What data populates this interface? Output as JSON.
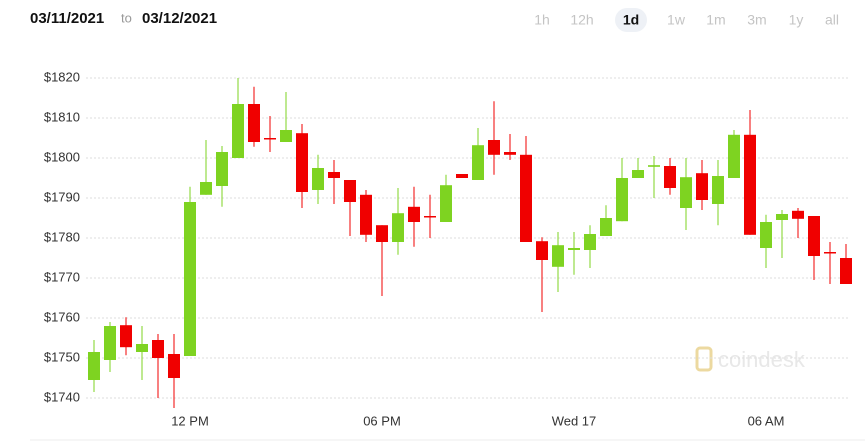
{
  "header": {
    "from": "03/11/2021",
    "sep": "to",
    "to": "03/12/2021"
  },
  "ranges": {
    "options": [
      "1h",
      "12h",
      "1d",
      "1w",
      "1m",
      "3m",
      "1y",
      "all"
    ],
    "selected": "1d"
  },
  "chart_data": {
    "type": "candlestick",
    "watermark": "coindesk",
    "categories": [
      null,
      null,
      null,
      null,
      null,
      null,
      "12 PM",
      null,
      null,
      null,
      null,
      null,
      null,
      null,
      null,
      null,
      null,
      null,
      "06 PM",
      null,
      null,
      null,
      null,
      null,
      null,
      null,
      null,
      null,
      null,
      null,
      "Wed 17",
      null,
      null,
      null,
      null,
      null,
      null,
      null,
      null,
      null,
      null,
      null,
      "06 AM",
      null,
      null,
      null,
      null,
      null
    ],
    "open": [
      1744.5,
      1749.5,
      1758.2,
      1751.5,
      1754.5,
      1751,
      1750.5,
      1790.8,
      1793,
      1800,
      1813.5,
      1805,
      1804,
      1806.2,
      1792,
      1796.5,
      1794.5,
      1790.8,
      1783.2,
      1779,
      1787.8,
      1785.5,
      1784,
      1796,
      1794.5,
      1804.5,
      1801.5,
      1800.8,
      1779.2,
      1772.8,
      1777,
      1777,
      1780.5,
      1784.2,
      1795,
      1797.8,
      1798,
      1787.5,
      1796.2,
      1788.5,
      1795,
      1805.8,
      1777.5,
      1784.5,
      1786.8,
      1785.5,
      1776.5,
      1775
    ],
    "high": [
      1754.5,
      1759,
      1760.2,
      1758,
      1756,
      1756,
      1792.8,
      1804.5,
      1803,
      1820,
      1817.8,
      1810.5,
      1816.5,
      1808.5,
      1800.8,
      1799.5,
      1794.5,
      1792,
      1783.2,
      1792.5,
      1792.8,
      1790.8,
      1795.8,
      1796,
      1807.5,
      1814.2,
      1806,
      1805.5,
      1780.2,
      1781.5,
      1781.5,
      1783.2,
      1788.2,
      1800,
      1800,
      1800.5,
      1800,
      1800,
      1799.5,
      1799.5,
      1807,
      1812,
      1785.8,
      1787,
      1787.5,
      1785.5,
      1779,
      1778.5
    ],
    "low": [
      1741.5,
      1746.5,
      1750.7,
      1744.5,
      1740,
      1737.5,
      1750.5,
      1790.8,
      1787.8,
      1800,
      1802.8,
      1801.5,
      1804,
      1787.5,
      1788.5,
      1788.5,
      1780.5,
      1779,
      1765.5,
      1775.8,
      1777.8,
      1780,
      1784,
      1795,
      1794.5,
      1795.8,
      1799.5,
      1779,
      1761.5,
      1766.5,
      1770.8,
      1772.5,
      1780.5,
      1784.2,
      1795,
      1790,
      1790.8,
      1782,
      1787,
      1783.2,
      1795,
      1780.8,
      1772.5,
      1775,
      1780,
      1769.5,
      1768.5,
      1768.5
    ],
    "close": [
      1751.5,
      1758,
      1752.7,
      1753.5,
      1750,
      1745,
      1789,
      1794,
      1801.5,
      1813.5,
      1804,
      1804.8,
      1807,
      1791.5,
      1797.5,
      1795,
      1789,
      1780.8,
      1779,
      1786.2,
      1784,
      1785.2,
      1793.2,
      1795,
      1803.2,
      1800.8,
      1800.8,
      1779,
      1774.5,
      1778.2,
      1777.5,
      1781,
      1785,
      1795,
      1797,
      1798.2,
      1792.5,
      1795.2,
      1789.5,
      1795.5,
      1805.8,
      1780.8,
      1784,
      1786,
      1784.8,
      1775.5,
      1776.2,
      1768.5
    ],
    "up_color": "#7ed321",
    "down_color": "#f00000",
    "ylim": [
      1735,
      1822
    ],
    "yticks": [
      {
        "value": 1740,
        "label": "$1740"
      },
      {
        "value": 1750,
        "label": "$1750"
      },
      {
        "value": 1760,
        "label": "$1760"
      },
      {
        "value": 1770,
        "label": "$1770"
      },
      {
        "value": 1780,
        "label": "$1780"
      },
      {
        "value": 1790,
        "label": "$1790"
      },
      {
        "value": 1800,
        "label": "$1800"
      },
      {
        "value": 1810,
        "label": "$1810"
      },
      {
        "value": 1820,
        "label": "$1820"
      }
    ],
    "grid": true
  }
}
